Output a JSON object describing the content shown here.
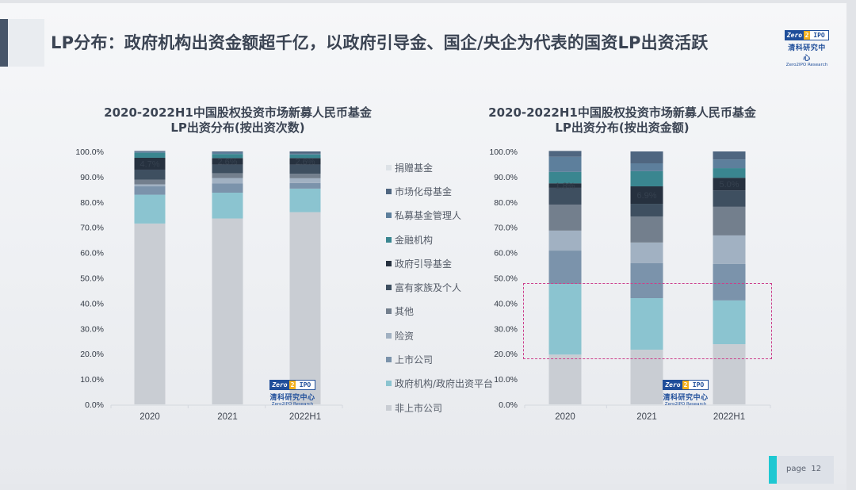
{
  "slide": {
    "title": "LP分布：政府机构出资金额超千亿，以政府引导金、国企/央企为代表的国资LP出资活跃",
    "logo": {
      "badge_left": "Zero",
      "badge_mid": "2",
      "badge_right": "IPO",
      "cn": "清科研究中心",
      "en": "Zero2IPO Research"
    },
    "page_label": "page",
    "page_number": "12"
  },
  "legend": [
    {
      "label": "捐赠基金",
      "color": "#dde2e7"
    },
    {
      "label": "市场化母基金",
      "color": "#4f6680"
    },
    {
      "label": "私募基金管理人",
      "color": "#5d7f9c"
    },
    {
      "label": "金融机构",
      "color": "#3a8690"
    },
    {
      "label": "政府引导基金",
      "color": "#26313f"
    },
    {
      "label": "富有家族及个人",
      "color": "#3e4f60"
    },
    {
      "label": "其他",
      "color": "#737f8d"
    },
    {
      "label": "险资",
      "color": "#a1b1c2"
    },
    {
      "label": "上市公司",
      "color": "#7b93ab"
    },
    {
      "label": "政府机构/政府出资平台",
      "color": "#8bc4d0"
    },
    {
      "label": "非上市公司",
      "color": "#c9cdd3"
    }
  ],
  "chart_data": [
    {
      "type": "bar",
      "stacked": true,
      "title": "2020-2022H1中国股权投资市场新募人民币基金",
      "subtitle": "LP出资分布(按出资次数)",
      "categories": [
        "2020",
        "2021",
        "2022H1"
      ],
      "ylim": [
        0,
        100
      ],
      "yticks": [
        "0.0%",
        "10.0%",
        "20.0%",
        "30.0%",
        "40.0%",
        "50.0%",
        "60.0%",
        "70.0%",
        "80.0%",
        "90.0%",
        "100.0%"
      ],
      "series": [
        {
          "name": "非上市公司",
          "values": [
            71.5,
            73.5,
            76.0
          ]
        },
        {
          "name": "政府机构/政府出资平台",
          "values": [
            11.4,
            10.2,
            9.3
          ]
        },
        {
          "name": "上市公司",
          "values": [
            3.3,
            3.6,
            2.2
          ]
        },
        {
          "name": "险资",
          "values": [
            0.8,
            2.2,
            1.9
          ]
        },
        {
          "name": "其他",
          "values": [
            1.8,
            1.9,
            1.8
          ]
        },
        {
          "name": "富有家族及个人",
          "values": [
            4.0,
            3.4,
            3.6
          ]
        },
        {
          "name": "政府引导基金",
          "values": [
            4.7,
            2.6,
            2.6
          ]
        },
        {
          "name": "金融机构",
          "values": [
            2.0,
            1.6,
            1.4
          ]
        },
        {
          "name": "私募基金管理人",
          "values": [
            0.4,
            0.7,
            0.3
          ]
        },
        {
          "name": "市场化母基金",
          "values": [
            0.3,
            0.3,
            0.9
          ]
        },
        {
          "name": "捐赠基金",
          "values": [
            0.0,
            0.0,
            0.0
          ]
        }
      ],
      "data_labels": [
        {
          "series": "政府引导基金",
          "labels": [
            "4.7%",
            "2.6%",
            "2.6%"
          ]
        }
      ]
    },
    {
      "type": "bar",
      "stacked": true,
      "title": "2020-2022H1中国股权投资市场新募人民币基金",
      "subtitle": "LP出资分布(按出资金额)",
      "categories": [
        "2020",
        "2021",
        "2022H1"
      ],
      "ylim": [
        0,
        100
      ],
      "yticks": [
        "0.0%",
        "10.0%",
        "20.0%",
        "30.0%",
        "40.0%",
        "50.0%",
        "60.0%",
        "70.0%",
        "80.0%",
        "90.0%",
        "100.0%"
      ],
      "series": [
        {
          "name": "非上市公司",
          "values": [
            19.7,
            21.6,
            23.8
          ]
        },
        {
          "name": "政府机构/政府出资平台",
          "values": [
            27.9,
            20.4,
            17.3
          ]
        },
        {
          "name": "上市公司",
          "values": [
            13.2,
            13.8,
            14.4
          ]
        },
        {
          "name": "险资",
          "values": [
            7.9,
            8.2,
            11.3
          ]
        },
        {
          "name": "其他",
          "values": [
            10.3,
            10.3,
            11.3
          ]
        },
        {
          "name": "富有家族及个人",
          "values": [
            6.6,
            5.0,
            6.5
          ]
        },
        {
          "name": "政府引导基金",
          "values": [
            1.8,
            6.9,
            5.0
          ]
        },
        {
          "name": "金融机构",
          "values": [
            4.5,
            6.0,
            3.8
          ]
        },
        {
          "name": "私募基金管理人",
          "values": [
            6.0,
            3.1,
            3.4
          ]
        },
        {
          "name": "市场化母基金",
          "values": [
            2.3,
            4.7,
            3.2
          ]
        },
        {
          "name": "捐赠基金",
          "values": [
            0.0,
            0.0,
            0.0
          ]
        }
      ],
      "data_labels": [
        {
          "series": "政府引导基金",
          "labels": [
            "1.8%",
            "6.9%",
            "5.0%"
          ]
        }
      ],
      "annotation": "dashed highlight box spanning 20%–48% across all bars"
    }
  ]
}
